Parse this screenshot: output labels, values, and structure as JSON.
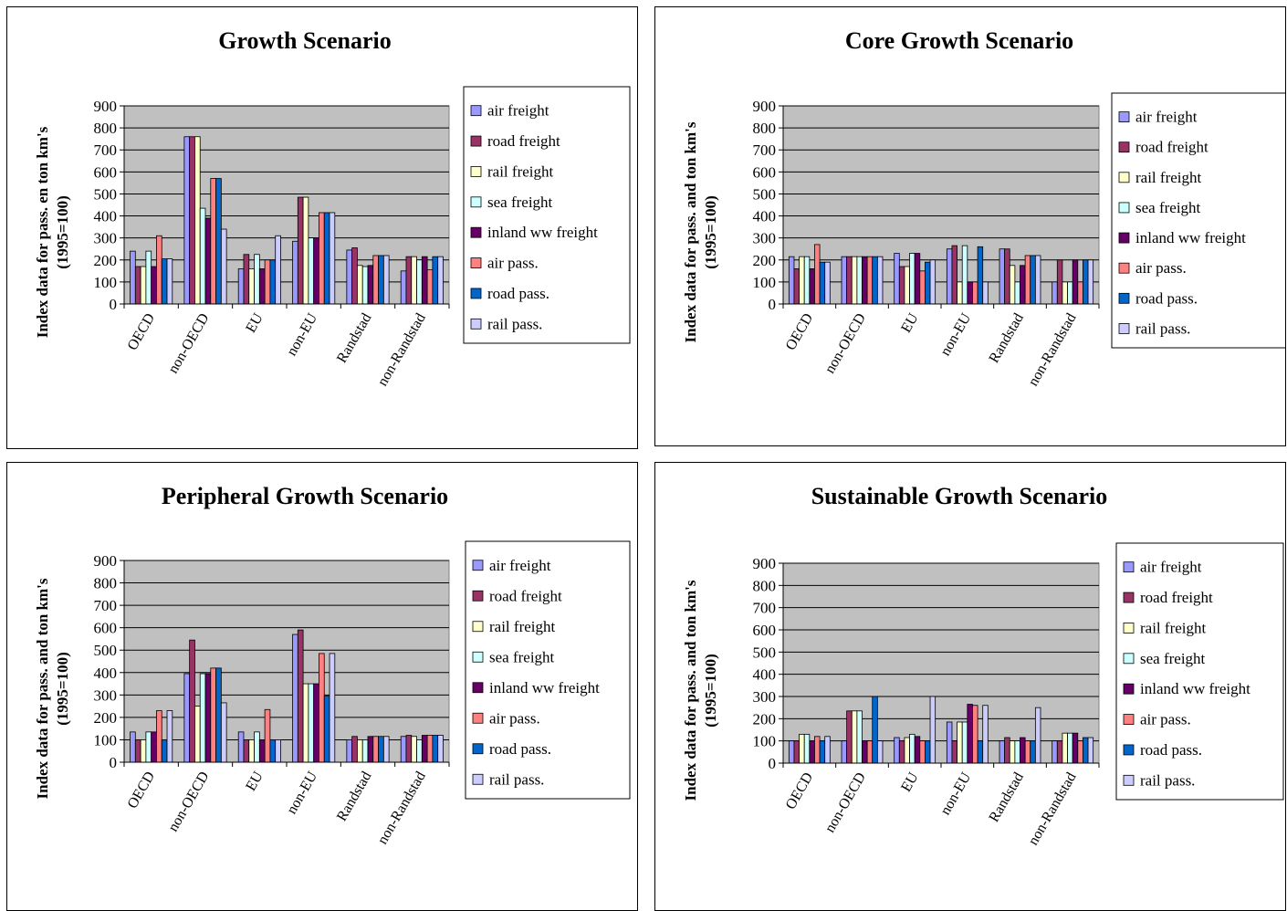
{
  "chart_data": [
    {
      "type": "bar",
      "title": "Growth Scenario",
      "ylabel_lines": [
        "Index data for pass. en ton km's",
        "(1995=100)"
      ],
      "ylim": [
        0,
        900
      ],
      "yticks": [
        0,
        100,
        200,
        300,
        400,
        500,
        600,
        700,
        800,
        900
      ],
      "grid": true,
      "legend_position": "right",
      "categories": [
        "OECD",
        "non-OECD",
        "EU",
        "non-EU",
        "Randstad",
        "non-Randstad"
      ],
      "series": [
        {
          "name": "air freight",
          "color": "#9999FF",
          "values": [
            240,
            760,
            160,
            285,
            245,
            150
          ]
        },
        {
          "name": "road freight",
          "color": "#993366",
          "values": [
            170,
            760,
            225,
            485,
            255,
            215
          ]
        },
        {
          "name": "rail freight",
          "color": "#FFFFCC",
          "values": [
            170,
            760,
            160,
            485,
            175,
            215
          ]
        },
        {
          "name": "sea freight",
          "color": "#CCFFFF",
          "values": [
            240,
            435,
            225,
            300,
            170,
            200
          ]
        },
        {
          "name": "inland ww freight",
          "color": "#660066",
          "values": [
            170,
            390,
            160,
            300,
            175,
            215
          ]
        },
        {
          "name": "air pass.",
          "color": "#FF8080",
          "values": [
            310,
            570,
            200,
            415,
            220,
            155
          ]
        },
        {
          "name": "road pass.",
          "color": "#0066CC",
          "values": [
            205,
            570,
            200,
            415,
            220,
            215
          ]
        },
        {
          "name": "rail pass.",
          "color": "#CCCCFF",
          "values": [
            205,
            340,
            310,
            415,
            220,
            215
          ]
        }
      ]
    },
    {
      "type": "bar",
      "title": "Core Growth Scenario",
      "ylabel_lines": [
        "Index data for pass. and ton km's",
        "(1995=100)"
      ],
      "ylim": [
        0,
        900
      ],
      "yticks": [
        0,
        100,
        200,
        300,
        400,
        500,
        600,
        700,
        800,
        900
      ],
      "grid": true,
      "legend_position": "right",
      "categories": [
        "OECD",
        "non-OECD",
        "EU",
        "non-EU",
        "Randstad",
        "non-Randstad"
      ],
      "series": [
        {
          "name": "air freight",
          "color": "#9999FF",
          "values": [
            215,
            215,
            230,
            250,
            250,
            100
          ]
        },
        {
          "name": "road freight",
          "color": "#993366",
          "values": [
            160,
            215,
            170,
            265,
            250,
            200
          ]
        },
        {
          "name": "rail freight",
          "color": "#FFFFCC",
          "values": [
            215,
            215,
            170,
            100,
            175,
            100
          ]
        },
        {
          "name": "sea freight",
          "color": "#CCFFFF",
          "values": [
            215,
            215,
            230,
            265,
            100,
            100
          ]
        },
        {
          "name": "inland ww freight",
          "color": "#660066",
          "values": [
            160,
            215,
            230,
            100,
            175,
            200
          ]
        },
        {
          "name": "air pass.",
          "color": "#FF8080",
          "values": [
            270,
            215,
            150,
            100,
            220,
            100
          ]
        },
        {
          "name": "road pass.",
          "color": "#0066CC",
          "values": [
            190,
            215,
            190,
            260,
            220,
            200
          ]
        },
        {
          "name": "rail pass.",
          "color": "#CCCCFF",
          "values": [
            190,
            215,
            200,
            100,
            220,
            200
          ]
        }
      ]
    },
    {
      "type": "bar",
      "title": "Peripheral Growth Scenario",
      "ylabel_lines": [
        "Index data for pass. and ton km's",
        "(1995=100)"
      ],
      "ylim": [
        0,
        900
      ],
      "yticks": [
        0,
        100,
        200,
        300,
        400,
        500,
        600,
        700,
        800,
        900
      ],
      "grid": true,
      "legend_position": "right",
      "categories": [
        "OECD",
        "non-OECD",
        "EU",
        "non-EU",
        "Randstad",
        "non-Randstad"
      ],
      "series": [
        {
          "name": "air freight",
          "color": "#9999FF",
          "values": [
            135,
            395,
            135,
            570,
            100,
            115
          ]
        },
        {
          "name": "road freight",
          "color": "#993366",
          "values": [
            100,
            545,
            100,
            590,
            115,
            120
          ]
        },
        {
          "name": "rail freight",
          "color": "#FFFFCC",
          "values": [
            100,
            250,
            100,
            350,
            100,
            115
          ]
        },
        {
          "name": "sea freight",
          "color": "#CCFFFF",
          "values": [
            135,
            395,
            135,
            350,
            100,
            100
          ]
        },
        {
          "name": "inland ww freight",
          "color": "#660066",
          "values": [
            135,
            395,
            100,
            350,
            115,
            120
          ]
        },
        {
          "name": "air pass.",
          "color": "#FF8080",
          "values": [
            230,
            420,
            235,
            485,
            115,
            120
          ]
        },
        {
          "name": "road pass.",
          "color": "#0066CC",
          "values": [
            100,
            420,
            100,
            295,
            115,
            120
          ]
        },
        {
          "name": "rail pass.",
          "color": "#CCCCFF",
          "values": [
            230,
            265,
            100,
            485,
            115,
            120
          ]
        }
      ]
    },
    {
      "type": "bar",
      "title": "Sustainable Growth Scenario",
      "ylabel_lines": [
        "Index data for pass. and ton km's",
        "(1995=100)"
      ],
      "ylim": [
        0,
        900
      ],
      "yticks": [
        0,
        100,
        200,
        300,
        400,
        500,
        600,
        700,
        800,
        900
      ],
      "grid": true,
      "legend_position": "right",
      "categories": [
        "OECD",
        "non-OECD",
        "EU",
        "non-EU",
        "Randstad",
        "non-Randstad"
      ],
      "series": [
        {
          "name": "air freight",
          "color": "#9999FF",
          "values": [
            100,
            100,
            115,
            185,
            100,
            100
          ]
        },
        {
          "name": "road freight",
          "color": "#993366",
          "values": [
            100,
            235,
            100,
            100,
            115,
            100
          ]
        },
        {
          "name": "rail freight",
          "color": "#FFFFCC",
          "values": [
            130,
            235,
            115,
            185,
            100,
            135
          ]
        },
        {
          "name": "sea freight",
          "color": "#CCFFFF",
          "values": [
            130,
            235,
            130,
            185,
            100,
            135
          ]
        },
        {
          "name": "inland ww freight",
          "color": "#660066",
          "values": [
            100,
            100,
            120,
            265,
            115,
            135
          ]
        },
        {
          "name": "air pass.",
          "color": "#FF8080",
          "values": [
            120,
            100,
            100,
            260,
            100,
            100
          ]
        },
        {
          "name": "road pass.",
          "color": "#0066CC",
          "values": [
            100,
            300,
            100,
            100,
            100,
            115
          ]
        },
        {
          "name": "rail pass.",
          "color": "#CCCCFF",
          "values": [
            120,
            100,
            300,
            260,
            250,
            115
          ]
        }
      ]
    }
  ]
}
